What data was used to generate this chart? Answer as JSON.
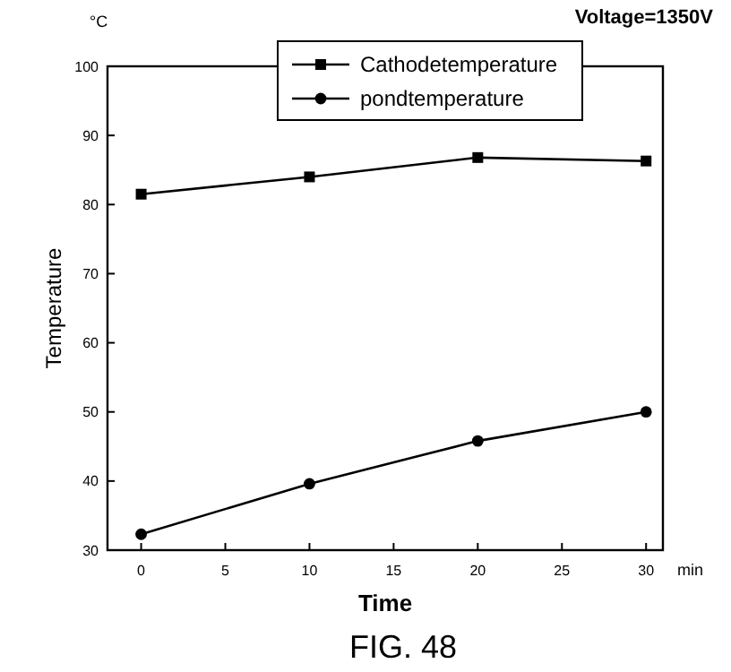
{
  "chart_data": {
    "type": "line",
    "xlabel": "Time",
    "ylabel": "Temperature",
    "annotations": [
      "°C",
      "min",
      "Voltage=1350V",
      "FIG. 48"
    ],
    "x": [
      0,
      10,
      20,
      30
    ],
    "series": [
      {
        "name": "Cathodetemperature",
        "color": "#000000",
        "values": [
          81.5,
          84,
          86.8,
          86.3
        ],
        "marker": "square"
      },
      {
        "name": "pondtemperature",
        "color": "#000000",
        "values": [
          32.3,
          39.6,
          45.8,
          50
        ],
        "marker": "circle"
      }
    ],
    "xlim": [
      -2,
      31
    ],
    "xticks": [
      0,
      5,
      10,
      15,
      20,
      25,
      30
    ],
    "ylim": [
      30,
      100
    ],
    "yticks": [
      30,
      40,
      50,
      60,
      70,
      80,
      90,
      100
    ],
    "legend": "top",
    "grid": false
  }
}
